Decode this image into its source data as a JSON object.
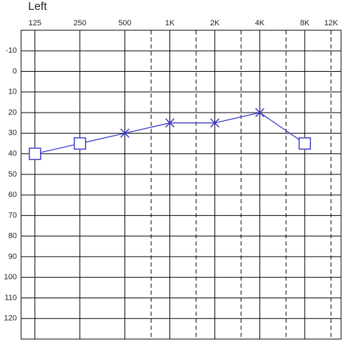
{
  "chart_data": {
    "type": "line",
    "title": "Left",
    "x": [
      125,
      250,
      500,
      1000,
      2000,
      4000,
      8000
    ],
    "series": [
      {
        "color": "#3a3acc",
        "values": [
          40,
          35,
          30,
          25,
          25,
          20,
          35
        ],
        "markers": [
          "square",
          "square",
          "x",
          "x",
          "x",
          "x",
          "square"
        ]
      }
    ],
    "xscale": "log",
    "xlim": [
      101,
      14000
    ],
    "xticks": [
      125,
      250,
      500,
      {
        "value": 1000,
        "label": "1K"
      },
      {
        "value": 2000,
        "label": "2K"
      },
      {
        "value": 4000,
        "label": "4K"
      },
      {
        "value": 8000,
        "label": "8K"
      },
      {
        "value": 12000,
        "label": "12K"
      }
    ],
    "dashed_xgrid": [
      750,
      1500,
      3000,
      6000,
      12000
    ],
    "ylim": [
      130,
      -20
    ],
    "yticks": [
      -10,
      0,
      10,
      20,
      30,
      40,
      50,
      60,
      70,
      80,
      90,
      100,
      110,
      120
    ],
    "grid": true
  }
}
